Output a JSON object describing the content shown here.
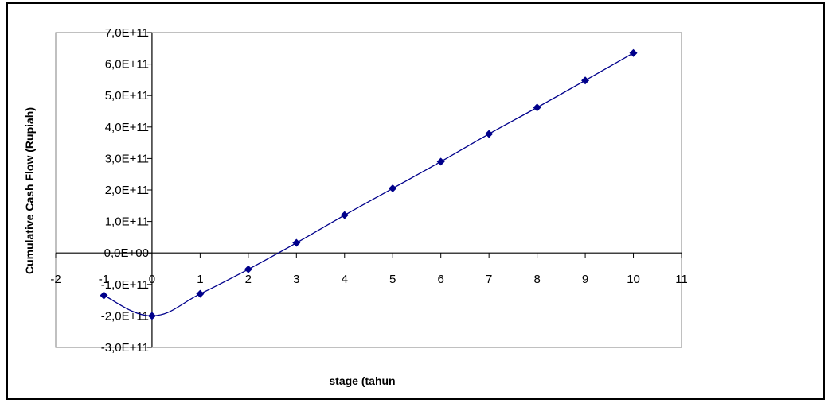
{
  "chart_data": {
    "type": "line",
    "title": "",
    "xlabel": "stage (tahun",
    "ylabel": "Cumulative Cash Flow (Rupiah)",
    "xlim": [
      -2,
      11
    ],
    "ylim": [
      -300000000000.0,
      700000000000.0
    ],
    "x_ticks": [
      -2,
      -1,
      0,
      1,
      2,
      3,
      4,
      5,
      6,
      7,
      8,
      9,
      10,
      11
    ],
    "x_tick_labels": [
      "-2",
      "-1",
      "0",
      "1",
      "2",
      "3",
      "4",
      "5",
      "6",
      "7",
      "8",
      "9",
      "10",
      "11"
    ],
    "y_ticks": [
      700000000000.0,
      600000000000.0,
      500000000000.0,
      400000000000.0,
      300000000000.0,
      200000000000.0,
      100000000000.0,
      0,
      -100000000000.0,
      -200000000000.0,
      -300000000000.0
    ],
    "y_tick_labels": [
      "7,0E+11",
      "6,0E+11",
      "5,0E+11",
      "4,0E+11",
      "3,0E+11",
      "2,0E+11",
      "1,0E+11",
      "0,0E+00",
      "-1,0E+11",
      "-2,0E+11",
      "-3,0E+11"
    ],
    "grid": false,
    "legend": "none",
    "series": [
      {
        "color": "#00008B",
        "marker": "diamond",
        "x": [
          -1,
          0,
          1,
          2,
          3,
          4,
          5,
          6,
          7,
          8,
          9,
          10
        ],
        "y": [
          -135000000000.0,
          -200000000000.0,
          -130000000000.0,
          -52000000000.0,
          32000000000.0,
          120000000000.0,
          205000000000.0,
          290000000000.0,
          378000000000.0,
          462000000000.0,
          548000000000.0,
          635000000000.0
        ]
      }
    ]
  }
}
